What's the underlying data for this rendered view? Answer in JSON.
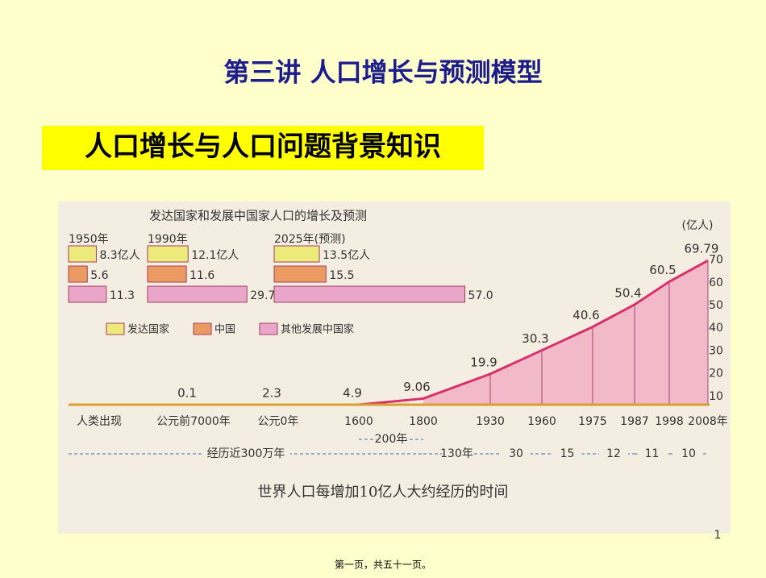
{
  "header": {
    "title": "第三讲  人口增长与预测模型"
  },
  "section": {
    "title": "人口增长与人口问题背景知识"
  },
  "figure": {
    "title": "发达国家和发展中国家人口的增长及预测",
    "groups": [
      {
        "year": "1950年",
        "values": [
          {
            "value": 8.3,
            "label": "8.3亿人"
          },
          5.6,
          11.3
        ]
      },
      {
        "year": "1990年",
        "values": [
          {
            "value": 12.1,
            "label": "12.1亿人"
          },
          11.6,
          29.7
        ]
      },
      {
        "year": "2025年(预测)",
        "values": [
          {
            "value": 13.5,
            "label": "13.5亿人"
          },
          15.5,
          {
            "value": 57,
            "label": "57.0"
          }
        ]
      }
    ],
    "legend": [
      {
        "name": "发达国家",
        "color": "#ecea7a"
      },
      {
        "name": "中国",
        "color": "#eb9a62"
      },
      {
        "name": "其他发展中国家",
        "color": "#eaa6c8"
      }
    ],
    "unit": "(亿人)",
    "axis_ticks": [
      10,
      20,
      30,
      40,
      50,
      60,
      70
    ],
    "milestones": [
      {
        "label": "人类出现"
      },
      {
        "label": "公元前7000年",
        "population": 0.1
      },
      {
        "label": "公元0年",
        "population": 2.3
      },
      {
        "label": "1600",
        "population": 4.9
      },
      {
        "label": "1800",
        "population": 9.06
      },
      {
        "label": "1930",
        "population": 19.9
      },
      {
        "label": "1960",
        "population": 30.3
      },
      {
        "label": "1975",
        "population": 40.6
      },
      {
        "label": "1987",
        "population": 50.4
      },
      {
        "label": "1998",
        "population": 60.5
      },
      {
        "label": "2008年",
        "population": 69.79
      }
    ],
    "intervals": [
      "经历近300万年",
      "200年",
      "130年",
      "30",
      "15",
      "12",
      "11",
      "10"
    ],
    "caption": "世界人口每增加10亿人大约经历的时间"
  },
  "slide_number": "1",
  "footer": "第一页，共五十一页。"
}
